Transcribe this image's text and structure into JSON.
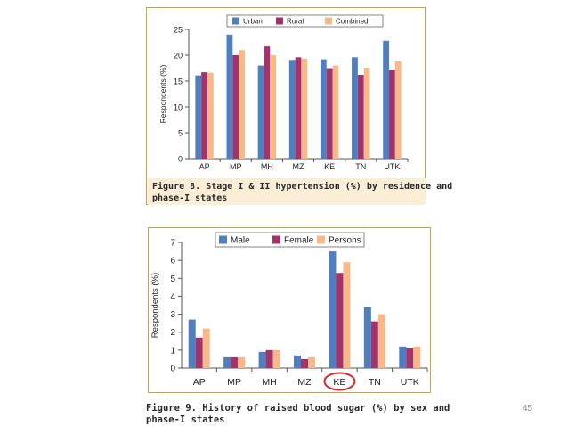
{
  "slide": {
    "page_number": "45"
  },
  "figure1": {
    "caption_lines": [
      "Figure 8.  Stage I & II hypertension (%) by residence and",
      "phase-I states"
    ]
  },
  "figure2": {
    "caption_lines": [
      "Figure 9. History of raised blood sugar (%) by sex and",
      "phase-I states"
    ]
  },
  "colors": {
    "series1": "#4f7fc0",
    "series2": "#a3336a",
    "series3": "#f8b98a",
    "figure_border": "#c8a23a",
    "caption_band": "#fbeed6",
    "plot_background": "#ffffff",
    "highlight_circle": "#d42a2a"
  },
  "chart_data": [
    {
      "type": "bar",
      "title": "",
      "xlabel": "",
      "ylabel": "Respondents (%)",
      "ylim": [
        0,
        25
      ],
      "yticks": [
        0,
        5,
        10,
        15,
        20,
        25
      ],
      "categories": [
        "AP",
        "MP",
        "MH",
        "MZ",
        "KE",
        "TN",
        "UTK"
      ],
      "series": [
        {
          "name": "Urban",
          "values": [
            16.1,
            24.0,
            18.0,
            19.1,
            19.2,
            19.6,
            22.8
          ]
        },
        {
          "name": "Rural",
          "values": [
            16.7,
            20.0,
            21.7,
            19.6,
            17.5,
            16.2,
            17.2
          ]
        },
        {
          "name": "Combined",
          "values": [
            16.6,
            21.0,
            20.0,
            19.3,
            18.0,
            17.6,
            18.8
          ]
        }
      ],
      "legend": "top",
      "grid": false
    },
    {
      "type": "bar",
      "title": "",
      "xlabel": "",
      "ylabel": "Respondents (%)",
      "ylim": [
        0,
        7
      ],
      "yticks": [
        0,
        1,
        2,
        3,
        4,
        5,
        6,
        7
      ],
      "categories": [
        "AP",
        "MP",
        "MH",
        "MZ",
        "KE",
        "TN",
        "UTK"
      ],
      "highlighted_category": "KE",
      "series": [
        {
          "name": "Male",
          "values": [
            2.7,
            0.6,
            0.9,
            0.7,
            6.5,
            3.4,
            1.2
          ]
        },
        {
          "name": "Female",
          "values": [
            1.7,
            0.6,
            1.0,
            0.5,
            5.3,
            2.6,
            1.1
          ]
        },
        {
          "name": "Persons",
          "values": [
            2.2,
            0.6,
            1.0,
            0.6,
            5.9,
            3.0,
            1.2
          ]
        }
      ],
      "legend": "top",
      "grid": false
    }
  ]
}
